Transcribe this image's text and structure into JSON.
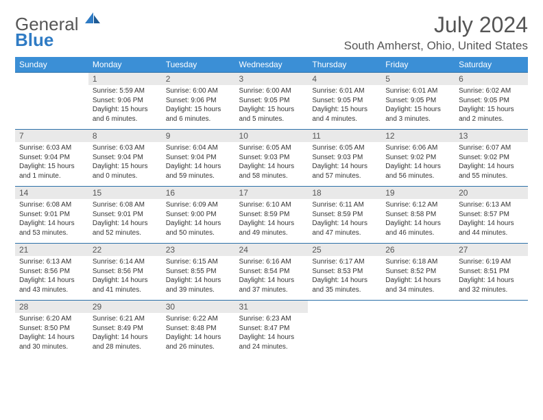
{
  "logo": {
    "line1": "General",
    "line2": "Blue"
  },
  "title": "July 2024",
  "location": "South Amherst, Ohio, United States",
  "colors": {
    "header_bg": "#3b8fd6",
    "border": "#2a6fa8",
    "daynum_bg": "#e9e9e9",
    "text": "#333333",
    "muted": "#555555"
  },
  "day_headers": [
    "Sunday",
    "Monday",
    "Tuesday",
    "Wednesday",
    "Thursday",
    "Friday",
    "Saturday"
  ],
  "weeks": [
    [
      null,
      {
        "n": "1",
        "sr": "Sunrise: 5:59 AM",
        "ss": "Sunset: 9:06 PM",
        "dl": "Daylight: 15 hours and 6 minutes."
      },
      {
        "n": "2",
        "sr": "Sunrise: 6:00 AM",
        "ss": "Sunset: 9:06 PM",
        "dl": "Daylight: 15 hours and 6 minutes."
      },
      {
        "n": "3",
        "sr": "Sunrise: 6:00 AM",
        "ss": "Sunset: 9:05 PM",
        "dl": "Daylight: 15 hours and 5 minutes."
      },
      {
        "n": "4",
        "sr": "Sunrise: 6:01 AM",
        "ss": "Sunset: 9:05 PM",
        "dl": "Daylight: 15 hours and 4 minutes."
      },
      {
        "n": "5",
        "sr": "Sunrise: 6:01 AM",
        "ss": "Sunset: 9:05 PM",
        "dl": "Daylight: 15 hours and 3 minutes."
      },
      {
        "n": "6",
        "sr": "Sunrise: 6:02 AM",
        "ss": "Sunset: 9:05 PM",
        "dl": "Daylight: 15 hours and 2 minutes."
      }
    ],
    [
      {
        "n": "7",
        "sr": "Sunrise: 6:03 AM",
        "ss": "Sunset: 9:04 PM",
        "dl": "Daylight: 15 hours and 1 minute."
      },
      {
        "n": "8",
        "sr": "Sunrise: 6:03 AM",
        "ss": "Sunset: 9:04 PM",
        "dl": "Daylight: 15 hours and 0 minutes."
      },
      {
        "n": "9",
        "sr": "Sunrise: 6:04 AM",
        "ss": "Sunset: 9:04 PM",
        "dl": "Daylight: 14 hours and 59 minutes."
      },
      {
        "n": "10",
        "sr": "Sunrise: 6:05 AM",
        "ss": "Sunset: 9:03 PM",
        "dl": "Daylight: 14 hours and 58 minutes."
      },
      {
        "n": "11",
        "sr": "Sunrise: 6:05 AM",
        "ss": "Sunset: 9:03 PM",
        "dl": "Daylight: 14 hours and 57 minutes."
      },
      {
        "n": "12",
        "sr": "Sunrise: 6:06 AM",
        "ss": "Sunset: 9:02 PM",
        "dl": "Daylight: 14 hours and 56 minutes."
      },
      {
        "n": "13",
        "sr": "Sunrise: 6:07 AM",
        "ss": "Sunset: 9:02 PM",
        "dl": "Daylight: 14 hours and 55 minutes."
      }
    ],
    [
      {
        "n": "14",
        "sr": "Sunrise: 6:08 AM",
        "ss": "Sunset: 9:01 PM",
        "dl": "Daylight: 14 hours and 53 minutes."
      },
      {
        "n": "15",
        "sr": "Sunrise: 6:08 AM",
        "ss": "Sunset: 9:01 PM",
        "dl": "Daylight: 14 hours and 52 minutes."
      },
      {
        "n": "16",
        "sr": "Sunrise: 6:09 AM",
        "ss": "Sunset: 9:00 PM",
        "dl": "Daylight: 14 hours and 50 minutes."
      },
      {
        "n": "17",
        "sr": "Sunrise: 6:10 AM",
        "ss": "Sunset: 8:59 PM",
        "dl": "Daylight: 14 hours and 49 minutes."
      },
      {
        "n": "18",
        "sr": "Sunrise: 6:11 AM",
        "ss": "Sunset: 8:59 PM",
        "dl": "Daylight: 14 hours and 47 minutes."
      },
      {
        "n": "19",
        "sr": "Sunrise: 6:12 AM",
        "ss": "Sunset: 8:58 PM",
        "dl": "Daylight: 14 hours and 46 minutes."
      },
      {
        "n": "20",
        "sr": "Sunrise: 6:13 AM",
        "ss": "Sunset: 8:57 PM",
        "dl": "Daylight: 14 hours and 44 minutes."
      }
    ],
    [
      {
        "n": "21",
        "sr": "Sunrise: 6:13 AM",
        "ss": "Sunset: 8:56 PM",
        "dl": "Daylight: 14 hours and 43 minutes."
      },
      {
        "n": "22",
        "sr": "Sunrise: 6:14 AM",
        "ss": "Sunset: 8:56 PM",
        "dl": "Daylight: 14 hours and 41 minutes."
      },
      {
        "n": "23",
        "sr": "Sunrise: 6:15 AM",
        "ss": "Sunset: 8:55 PM",
        "dl": "Daylight: 14 hours and 39 minutes."
      },
      {
        "n": "24",
        "sr": "Sunrise: 6:16 AM",
        "ss": "Sunset: 8:54 PM",
        "dl": "Daylight: 14 hours and 37 minutes."
      },
      {
        "n": "25",
        "sr": "Sunrise: 6:17 AM",
        "ss": "Sunset: 8:53 PM",
        "dl": "Daylight: 14 hours and 35 minutes."
      },
      {
        "n": "26",
        "sr": "Sunrise: 6:18 AM",
        "ss": "Sunset: 8:52 PM",
        "dl": "Daylight: 14 hours and 34 minutes."
      },
      {
        "n": "27",
        "sr": "Sunrise: 6:19 AM",
        "ss": "Sunset: 8:51 PM",
        "dl": "Daylight: 14 hours and 32 minutes."
      }
    ],
    [
      {
        "n": "28",
        "sr": "Sunrise: 6:20 AM",
        "ss": "Sunset: 8:50 PM",
        "dl": "Daylight: 14 hours and 30 minutes."
      },
      {
        "n": "29",
        "sr": "Sunrise: 6:21 AM",
        "ss": "Sunset: 8:49 PM",
        "dl": "Daylight: 14 hours and 28 minutes."
      },
      {
        "n": "30",
        "sr": "Sunrise: 6:22 AM",
        "ss": "Sunset: 8:48 PM",
        "dl": "Daylight: 14 hours and 26 minutes."
      },
      {
        "n": "31",
        "sr": "Sunrise: 6:23 AM",
        "ss": "Sunset: 8:47 PM",
        "dl": "Daylight: 14 hours and 24 minutes."
      },
      null,
      null,
      null
    ]
  ]
}
